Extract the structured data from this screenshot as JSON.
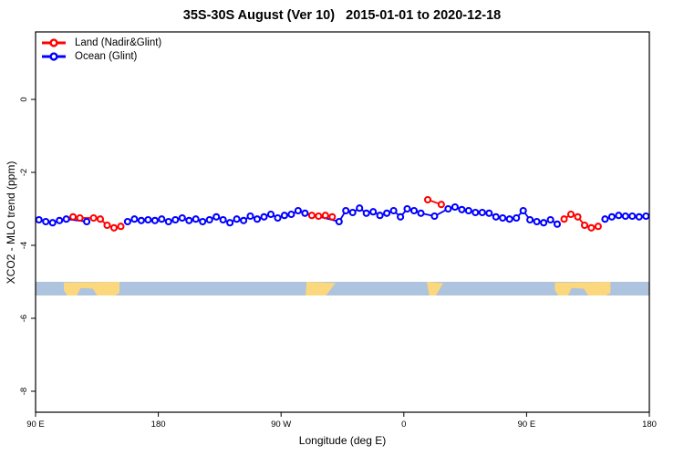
{
  "title": "35S-30S August (Ver 10)   2015-01-01 to 2020-12-18",
  "chart_data": {
    "type": "scatter",
    "marker": "open-circle",
    "connected": true,
    "title": "35S-30S August (Ver 10)   2015-01-01 to 2020-12-18",
    "x_axis": {
      "label": "Longitude (deg E)",
      "range": [
        90,
        540
      ],
      "ticks": [
        {
          "lon": 90,
          "label": "90 E"
        },
        {
          "lon": 180,
          "label": "180"
        },
        {
          "lon": 270,
          "label": "90 W"
        },
        {
          "lon": 360,
          "label": "0"
        },
        {
          "lon": 450,
          "label": "90 E"
        },
        {
          "lon": 540,
          "label": "180"
        }
      ]
    },
    "y_axis": {
      "label": "XCO2 - MLO trend (ppm)",
      "range": [
        -8.575,
        1.85
      ],
      "ticks": [
        0,
        -2,
        -4,
        -6,
        -8
      ]
    },
    "gap_threshold_deg": 25,
    "series": [
      {
        "name": "Land (Nadir&Glint)",
        "color": "#ff0000",
        "points": [
          [
            117.5,
            -3.22
          ],
          [
            122.5,
            -3.25
          ],
          [
            132.5,
            -3.25
          ],
          [
            137.5,
            -3.28
          ],
          [
            142.5,
            -3.45
          ],
          [
            147.5,
            -3.52
          ],
          [
            152.5,
            -3.48
          ],
          [
            292.5,
            -3.18
          ],
          [
            297.5,
            -3.2
          ],
          [
            302.5,
            -3.18
          ],
          [
            307.5,
            -3.22
          ],
          [
            377.5,
            -2.75
          ],
          [
            387.5,
            -2.88
          ],
          [
            477.5,
            -3.28
          ],
          [
            482.5,
            -3.15
          ],
          [
            487.5,
            -3.22
          ],
          [
            492.5,
            -3.45
          ],
          [
            497.5,
            -3.52
          ],
          [
            502.5,
            -3.48
          ]
        ]
      },
      {
        "name": "Ocean (Glint)",
        "color": "#0000ff",
        "points": [
          [
            92.5,
            -3.3
          ],
          [
            97.5,
            -3.35
          ],
          [
            102.5,
            -3.38
          ],
          [
            107.5,
            -3.32
          ],
          [
            112.5,
            -3.28
          ],
          [
            127.5,
            -3.35
          ],
          [
            157.5,
            -3.35
          ],
          [
            162.5,
            -3.28
          ],
          [
            167.5,
            -3.32
          ],
          [
            172.5,
            -3.3
          ],
          [
            177.5,
            -3.32
          ],
          [
            182.5,
            -3.28
          ],
          [
            187.5,
            -3.35
          ],
          [
            192.5,
            -3.3
          ],
          [
            197.5,
            -3.25
          ],
          [
            202.5,
            -3.32
          ],
          [
            207.5,
            -3.28
          ],
          [
            212.5,
            -3.35
          ],
          [
            217.5,
            -3.3
          ],
          [
            222.5,
            -3.22
          ],
          [
            227.5,
            -3.3
          ],
          [
            232.5,
            -3.38
          ],
          [
            237.5,
            -3.28
          ],
          [
            242.5,
            -3.32
          ],
          [
            247.5,
            -3.2
          ],
          [
            252.5,
            -3.28
          ],
          [
            257.5,
            -3.22
          ],
          [
            262.5,
            -3.15
          ],
          [
            267.5,
            -3.25
          ],
          [
            272.5,
            -3.18
          ],
          [
            277.5,
            -3.15
          ],
          [
            282.5,
            -3.05
          ],
          [
            287.5,
            -3.12
          ],
          [
            312.5,
            -3.35
          ],
          [
            317.5,
            -3.05
          ],
          [
            322.5,
            -3.1
          ],
          [
            327.5,
            -2.98
          ],
          [
            332.5,
            -3.12
          ],
          [
            337.5,
            -3.08
          ],
          [
            342.5,
            -3.18
          ],
          [
            347.5,
            -3.12
          ],
          [
            352.5,
            -3.05
          ],
          [
            357.5,
            -3.22
          ],
          [
            362.5,
            -3.0
          ],
          [
            367.5,
            -3.05
          ],
          [
            372.5,
            -3.12
          ],
          [
            382.5,
            -3.2
          ],
          [
            392.5,
            -3.0
          ],
          [
            397.5,
            -2.95
          ],
          [
            402.5,
            -3.02
          ],
          [
            407.5,
            -3.05
          ],
          [
            412.5,
            -3.1
          ],
          [
            417.5,
            -3.1
          ],
          [
            422.5,
            -3.12
          ],
          [
            427.5,
            -3.22
          ],
          [
            432.5,
            -3.25
          ],
          [
            437.5,
            -3.28
          ],
          [
            442.5,
            -3.25
          ],
          [
            447.5,
            -3.05
          ],
          [
            452.5,
            -3.3
          ],
          [
            457.5,
            -3.35
          ],
          [
            462.5,
            -3.38
          ],
          [
            467.5,
            -3.3
          ],
          [
            472.5,
            -3.42
          ],
          [
            507.5,
            -3.28
          ],
          [
            512.5,
            -3.22
          ],
          [
            517.5,
            -3.18
          ],
          [
            522.5,
            -3.2
          ],
          [
            527.5,
            -3.2
          ],
          [
            532.5,
            -3.22
          ],
          [
            537.5,
            -3.2
          ]
        ]
      }
    ]
  },
  "map_band": {
    "description": "35S-30S latitude world-map strip",
    "top_value": -5.0,
    "bottom_value": -5.375,
    "ocean_color": "#aec3de",
    "land_color": "#fbd77d",
    "patches": [
      {
        "name": "australia",
        "lon_start": 110.7,
        "lon_end": 151.5,
        "shape": [
          [
            0,
            0.05
          ],
          [
            1,
            0
          ],
          [
            1,
            0.82
          ],
          [
            0.92,
            1
          ],
          [
            0.6,
            1
          ],
          [
            0.52,
            0.5
          ],
          [
            0.3,
            0.45
          ],
          [
            0.24,
            1
          ],
          [
            0.06,
            1
          ],
          [
            0,
            0.6
          ]
        ]
      },
      {
        "name": "south-america",
        "lon_start": 287.9,
        "lon_end": 310.0,
        "shape": [
          [
            0.04,
            0
          ],
          [
            1,
            0.08
          ],
          [
            0.68,
            1
          ],
          [
            0,
            1
          ]
        ]
      },
      {
        "name": "south-africa",
        "lon_start": 376.9,
        "lon_end": 388.9,
        "shape": [
          [
            0,
            0
          ],
          [
            1,
            0.1
          ],
          [
            0.55,
            1
          ],
          [
            0.14,
            1
          ]
        ]
      },
      {
        "name": "australia-repeat",
        "lon_start": 470.7,
        "lon_end": 511.5,
        "shape": [
          [
            0,
            0.05
          ],
          [
            1,
            0
          ],
          [
            1,
            0.82
          ],
          [
            0.92,
            1
          ],
          [
            0.6,
            1
          ],
          [
            0.52,
            0.5
          ],
          [
            0.3,
            0.45
          ],
          [
            0.24,
            1
          ],
          [
            0.06,
            1
          ],
          [
            0,
            0.6
          ]
        ]
      }
    ]
  }
}
